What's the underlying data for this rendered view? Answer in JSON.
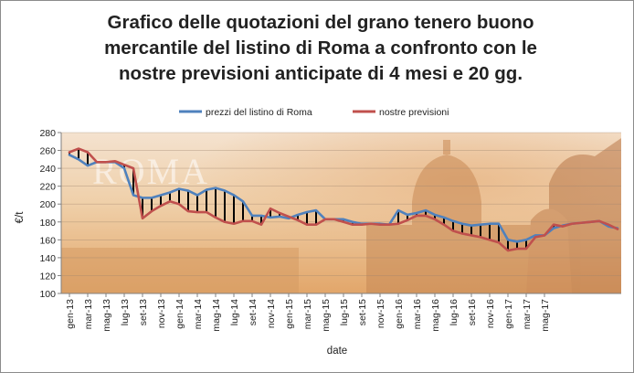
{
  "chart_data": {
    "type": "line",
    "title_lines": [
      "Grafico delle quotazioni del grano tenero buono",
      "mercantile del listino di Roma a confronto con le",
      "nostre previsioni anticipate di 4 mesi e 20 gg."
    ],
    "xlabel": "date",
    "ylabel": "€/t",
    "ylim": [
      100,
      280
    ],
    "yticks": [
      100,
      120,
      140,
      160,
      180,
      200,
      220,
      240,
      260,
      280
    ],
    "x_tick_labels": [
      "gen-13",
      "mar-13",
      "mag-13",
      "lug-13",
      "set-13",
      "nov-13",
      "gen-14",
      "mar-14",
      "mag-14",
      "lug-14",
      "set-14",
      "nov-14",
      "gen-15",
      "mar-15",
      "mag-15",
      "lug-15",
      "set-15",
      "nov-15",
      "gen-16",
      "mar-16",
      "mag-16",
      "lug-16",
      "set-16",
      "nov-16",
      "gen-17",
      "mar-17",
      "mag-17"
    ],
    "background_text": "ROMA",
    "legend_position": "top",
    "series": [
      {
        "name": "prezzi del listino di Roma",
        "color": "#4f81bd",
        "values": [
          255,
          250,
          243,
          247,
          247,
          247,
          240,
          210,
          207,
          207,
          210,
          213,
          217,
          215,
          210,
          216,
          218,
          215,
          210,
          203,
          187,
          187,
          185,
          186,
          184,
          188,
          191,
          193,
          183,
          183,
          183,
          180,
          178,
          178,
          178,
          177,
          193,
          188,
          190,
          193,
          188,
          185,
          181,
          178,
          176,
          177,
          178,
          178,
          160,
          158,
          160,
          165,
          165,
          173,
          176,
          178,
          179,
          180,
          181,
          175,
          173
        ]
      },
      {
        "name": "nostre previsioni",
        "color": "#c0504d",
        "values": [
          258,
          262,
          258,
          247,
          247,
          248,
          244,
          240,
          184,
          192,
          198,
          203,
          200,
          192,
          191,
          191,
          185,
          180,
          178,
          181,
          181,
          177,
          195,
          190,
          186,
          182,
          177,
          177,
          183,
          183,
          180,
          177,
          177,
          178,
          177,
          177,
          178,
          182,
          187,
          187,
          183,
          177,
          170,
          167,
          165,
          163,
          160,
          157,
          148,
          150,
          150,
          163,
          165,
          177,
          175,
          178,
          179,
          180,
          181,
          177,
          172
        ]
      }
    ]
  }
}
